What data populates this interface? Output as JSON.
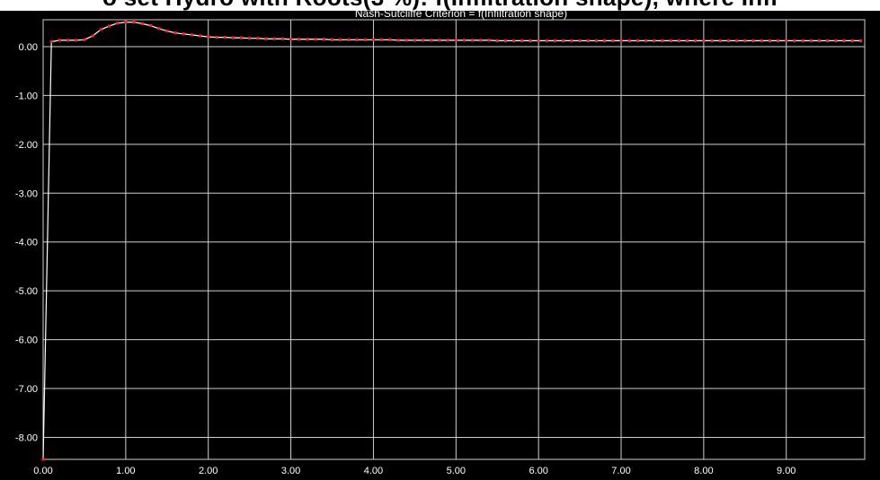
{
  "header": {
    "partial_title": "o set Hydro with Roots(3 %): f(Infiltration shape), where Infi"
  },
  "colors": {
    "background": "#000000",
    "grid": "#cfcfcf",
    "line": "#ffffff",
    "marker": "#ff2020",
    "text": "#ffffff"
  },
  "chart_data": {
    "type": "line",
    "title": "Nash-Sutcliffe Criterion = f(Infiltration shape)",
    "xlabel": "",
    "ylabel": "",
    "xlim": [
      0,
      9.95
    ],
    "ylim": [
      -8.45,
      0.55
    ],
    "grid": true,
    "x_ticks": [
      "0.00",
      "1.00",
      "2.00",
      "3.00",
      "4.00",
      "5.00",
      "6.00",
      "7.00",
      "8.00",
      "9.00"
    ],
    "y_ticks": [
      "0.00",
      "-1.00",
      "-2.00",
      "-3.00",
      "-4.00",
      "-5.00",
      "-6.00",
      "-7.00",
      "-8.00"
    ],
    "y_tick_values": [
      0,
      -1,
      -2,
      -3,
      -4,
      -5,
      -6,
      -7,
      -8
    ],
    "x_tick_values": [
      0,
      1,
      2,
      3,
      4,
      5,
      6,
      7,
      8,
      9
    ],
    "series": [
      {
        "x": [
          0.0,
          0.1,
          0.2,
          0.3,
          0.4,
          0.5,
          0.6,
          0.7,
          0.8,
          0.9,
          1.0,
          1.1,
          1.2,
          1.3,
          1.4,
          1.5,
          1.6,
          1.7,
          1.8,
          1.9,
          2.0,
          2.1,
          2.2,
          2.3,
          2.4,
          2.5,
          2.6,
          2.7,
          2.8,
          2.9,
          3.0,
          3.1,
          3.2,
          3.3,
          3.4,
          3.5,
          3.6,
          3.7,
          3.8,
          3.9,
          4.0,
          4.1,
          4.2,
          4.3,
          4.4,
          4.5,
          4.6,
          4.7,
          4.8,
          4.9,
          5.0,
          5.1,
          5.2,
          5.3,
          5.4,
          5.5,
          5.6,
          5.7,
          5.8,
          5.9,
          6.0,
          6.1,
          6.2,
          6.3,
          6.4,
          6.5,
          6.6,
          6.7,
          6.8,
          6.9,
          7.0,
          7.1,
          7.2,
          7.3,
          7.4,
          7.5,
          7.6,
          7.7,
          7.8,
          7.9,
          8.0,
          8.1,
          8.2,
          8.3,
          8.4,
          8.5,
          8.6,
          8.7,
          8.8,
          8.9,
          9.0,
          9.1,
          9.2,
          9.3,
          9.4,
          9.5,
          9.6,
          9.7,
          9.8,
          9.9
        ],
        "y": [
          -8.45,
          0.1,
          0.13,
          0.13,
          0.13,
          0.14,
          0.22,
          0.35,
          0.42,
          0.48,
          0.5,
          0.5,
          0.47,
          0.43,
          0.37,
          0.32,
          0.28,
          0.26,
          0.24,
          0.22,
          0.2,
          0.19,
          0.19,
          0.18,
          0.18,
          0.17,
          0.17,
          0.16,
          0.16,
          0.16,
          0.15,
          0.15,
          0.15,
          0.15,
          0.15,
          0.14,
          0.14,
          0.14,
          0.14,
          0.14,
          0.14,
          0.14,
          0.14,
          0.13,
          0.13,
          0.13,
          0.13,
          0.13,
          0.13,
          0.13,
          0.13,
          0.13,
          0.13,
          0.13,
          0.13,
          0.12,
          0.12,
          0.12,
          0.12,
          0.12,
          0.12,
          0.12,
          0.12,
          0.12,
          0.12,
          0.12,
          0.12,
          0.12,
          0.12,
          0.12,
          0.12,
          0.12,
          0.12,
          0.12,
          0.12,
          0.12,
          0.12,
          0.12,
          0.12,
          0.12,
          0.12,
          0.12,
          0.12,
          0.12,
          0.12,
          0.12,
          0.12,
          0.12,
          0.12,
          0.12,
          0.12,
          0.12,
          0.12,
          0.12,
          0.12,
          0.12,
          0.12,
          0.12,
          0.12,
          0.12
        ]
      }
    ]
  }
}
